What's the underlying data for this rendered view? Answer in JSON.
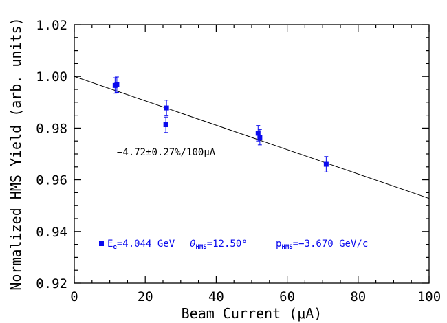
{
  "chart_data": {
    "type": "scatter",
    "xlabel": "Beam Current (μA)",
    "ylabel": "Normalized HMS Yield (arb. units)",
    "xlim": [
      0,
      100
    ],
    "ylim": [
      0.92,
      1.02
    ],
    "x_ticks": [
      "0",
      "20",
      "40",
      "60",
      "80",
      "100"
    ],
    "y_ticks": [
      "0.92",
      "0.94",
      "0.96",
      "0.98",
      "1.00",
      "1.02"
    ],
    "grid": false,
    "points": [
      {
        "x": 11.5,
        "y": 0.9965,
        "err": 0.003
      },
      {
        "x": 12.0,
        "y": 0.9968,
        "err": 0.003
      },
      {
        "x": 25.8,
        "y": 0.9813,
        "err": 0.003
      },
      {
        "x": 26.0,
        "y": 0.9878,
        "err": 0.003
      },
      {
        "x": 51.8,
        "y": 0.978,
        "err": 0.003
      },
      {
        "x": 52.3,
        "y": 0.9765,
        "err": 0.003
      },
      {
        "x": 71.0,
        "y": 0.966,
        "err": 0.003
      }
    ],
    "fit": {
      "x": [
        0,
        100
      ],
      "y": [
        1.0,
        0.9528
      ]
    },
    "fit_annotation": "−4.72±0.27%/100μA",
    "legend": {
      "placement": "bottom-left",
      "energy_main": "E",
      "energy_sub": "e",
      "energy_value": "=4.044 GeV",
      "theta_main": "θ",
      "theta_sub": "HMS",
      "theta_value": "=12.50°",
      "p_main": "p",
      "p_sub": "HMS",
      "p_value": "=−3.670 GeV/c"
    },
    "colors": {
      "points": "#0a0aee",
      "fit": "#000000",
      "axes": "#000000"
    }
  }
}
